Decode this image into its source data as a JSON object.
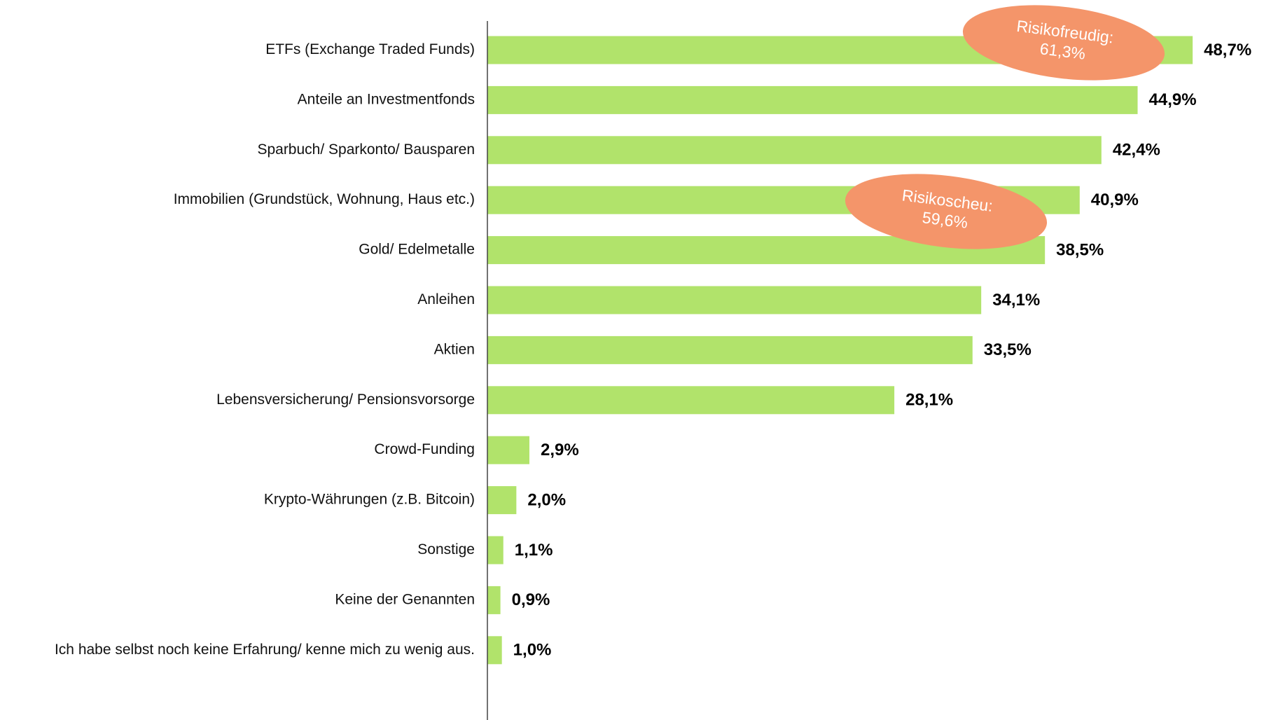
{
  "chart_data": {
    "type": "bar",
    "orientation": "horizontal",
    "categories": [
      "ETFs (Exchange Traded Funds)",
      "Anteile an Investmentfonds",
      "Sparbuch/ Sparkonto/ Bausparen",
      "Immobilien (Grundstück, Wohnung, Haus etc.)",
      "Gold/ Edelmetalle",
      "Anleihen",
      "Aktien",
      "Lebensversicherung/ Pensionsvorsorge",
      "Crowd-Funding",
      "Krypto-Währungen (z.B. Bitcoin)",
      "Sonstige",
      "Keine der Genannten",
      "Ich habe selbst noch keine Erfahrung/ kenne mich zu wenig aus."
    ],
    "values": [
      48.7,
      44.9,
      42.4,
      40.9,
      38.5,
      34.1,
      33.5,
      28.1,
      2.9,
      2.0,
      1.1,
      0.9,
      1.0
    ],
    "value_labels": [
      "48,7%",
      "44,9%",
      "42,4%",
      "40,9%",
      "38,5%",
      "34,1%",
      "33,5%",
      "28,1%",
      "2,9%",
      "2,0%",
      "1,1%",
      "0,9%",
      "1,0%"
    ],
    "color": "#b1e36b",
    "annotations": [
      {
        "lines": [
          "Risikofreudig:",
          "61,3%"
        ],
        "color": "#f4956a"
      },
      {
        "lines": [
          "Risikoscheu:",
          "59,6%"
        ],
        "color": "#f4956a"
      }
    ]
  }
}
